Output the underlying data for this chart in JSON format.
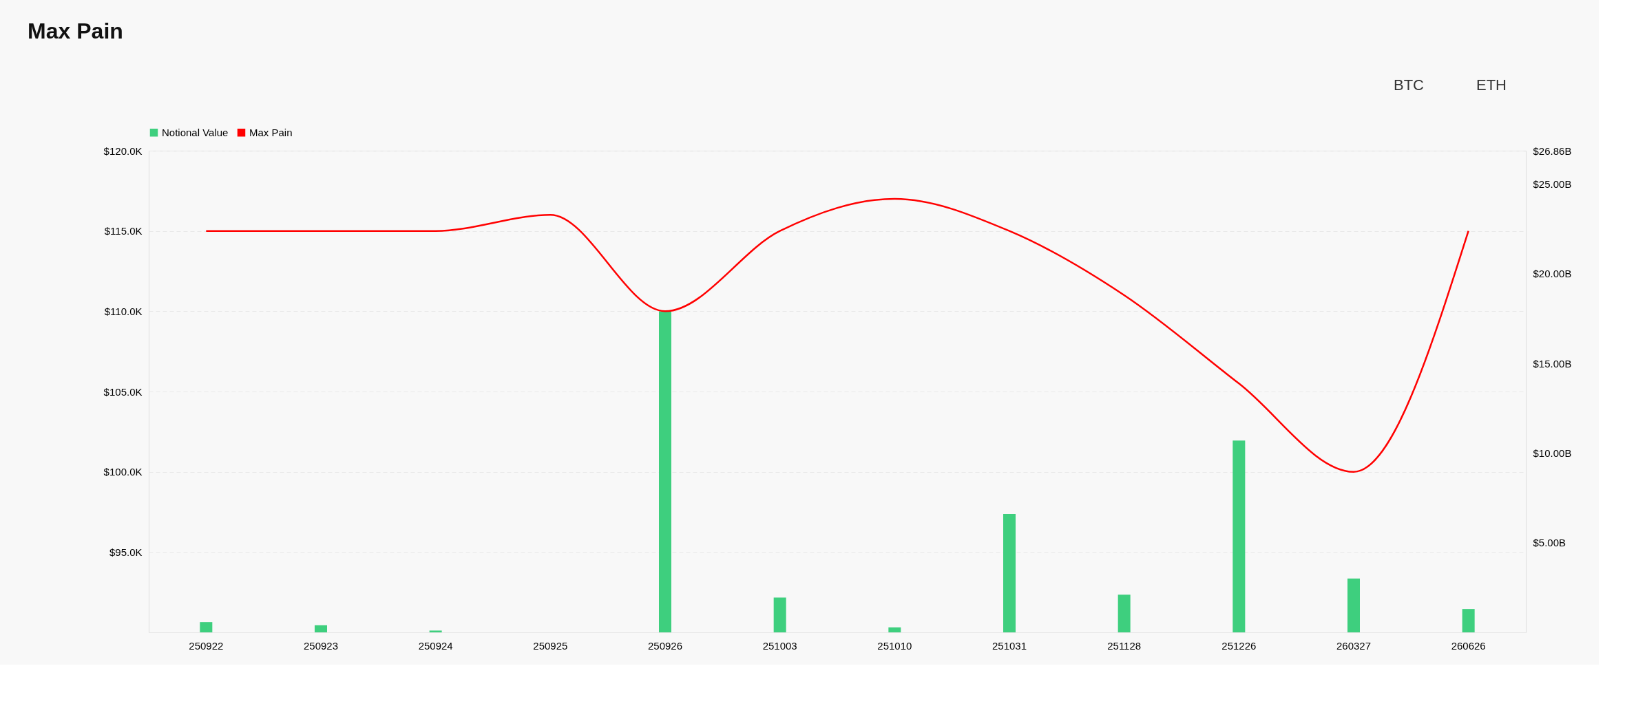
{
  "chart_data": {
    "type": "bar",
    "title": "Max Pain",
    "categories": [
      "250922",
      "250923",
      "250924",
      "250925",
      "250926",
      "251003",
      "251010",
      "251031",
      "251128",
      "251226",
      "260327",
      "260626"
    ],
    "series": [
      {
        "name": "Notional Value",
        "axis": "y2",
        "color": "#3ecf7e",
        "values": [
          0.57,
          0.4,
          0.1,
          0,
          17.9,
          1.94,
          0.28,
          6.6,
          2.1,
          10.7,
          3.0,
          1.3
        ]
      },
      {
        "name": "Max Pain",
        "type": "line",
        "color": "#ff0000",
        "values": [
          115000,
          115000,
          115000,
          116000,
          110000,
          115000,
          117000,
          115000,
          111000,
          105500,
          100000,
          115000
        ]
      }
    ],
    "ylim": [
      90000,
      120000
    ],
    "yticks": [
      {
        "value": 95000,
        "label": "$95.0K"
      },
      {
        "value": 100000,
        "label": "$100.0K"
      },
      {
        "value": 105000,
        "label": "$105.0K"
      },
      {
        "value": 110000,
        "label": "$110.0K"
      },
      {
        "value": 115000,
        "label": "$115.0K"
      },
      {
        "value": 120000,
        "label": "$120.0K"
      }
    ],
    "y2lim": [
      0,
      26.86
    ],
    "y2ticks": [
      {
        "value": 5,
        "label": "$5.00B"
      },
      {
        "value": 10,
        "label": "$10.00B"
      },
      {
        "value": 15,
        "label": "$15.00B"
      },
      {
        "value": 20,
        "label": "$20.00B"
      },
      {
        "value": 25,
        "label": "$25.00B"
      },
      {
        "value": 26.86,
        "label": "$26.86B"
      }
    ],
    "grid": "y",
    "legend": "top",
    "line_style": "solid",
    "marker": "none",
    "annotations": [
      "BTC",
      "ETH"
    ]
  }
}
